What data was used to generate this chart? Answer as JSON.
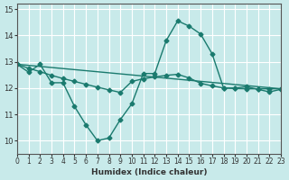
{
  "xlabel": "Humidex (Indice chaleur)",
  "ylabel": "",
  "background_color": "#c8eaea",
  "grid_color": "#ffffff",
  "line_color": "#1a7a6e",
  "xlim": [
    0,
    23
  ],
  "ylim": [
    9.5,
    15.2
  ],
  "xticks": [
    0,
    1,
    2,
    3,
    4,
    5,
    6,
    7,
    8,
    9,
    10,
    11,
    12,
    13,
    14,
    15,
    16,
    17,
    18,
    19,
    20,
    21,
    22,
    23
  ],
  "yticks": [
    10,
    11,
    12,
    13,
    14,
    15
  ],
  "line1_x": [
    0,
    1,
    2,
    3,
    4,
    5,
    6,
    7,
    8,
    9,
    10,
    11,
    12,
    13,
    14,
    15,
    16,
    17,
    18,
    19,
    20,
    21,
    22,
    23
  ],
  "line1_y": [
    12.9,
    12.6,
    12.9,
    12.2,
    12.2,
    11.3,
    10.6,
    10.0,
    10.1,
    10.8,
    11.4,
    12.55,
    12.55,
    13.8,
    14.55,
    14.35,
    14.05,
    13.3,
    12.0,
    12.0,
    12.05,
    11.95,
    11.85,
    11.95
  ],
  "line2_x": [
    0,
    1,
    2,
    3,
    4,
    5,
    6,
    7,
    8,
    9,
    10,
    11,
    12,
    13,
    14,
    15,
    16,
    17,
    18,
    19,
    20,
    21,
    22,
    23
  ],
  "line2_y": [
    12.9,
    12.75,
    12.62,
    12.48,
    12.36,
    12.25,
    12.14,
    12.03,
    11.93,
    11.83,
    12.25,
    12.35,
    12.42,
    12.48,
    12.52,
    12.38,
    12.18,
    12.08,
    12.0,
    11.98,
    11.97,
    11.97,
    11.97,
    11.97
  ],
  "line3_x": [
    0,
    23
  ],
  "line3_y": [
    12.9,
    11.97
  ],
  "marker": "D",
  "markersize": 2.5,
  "linewidth": 1.0
}
